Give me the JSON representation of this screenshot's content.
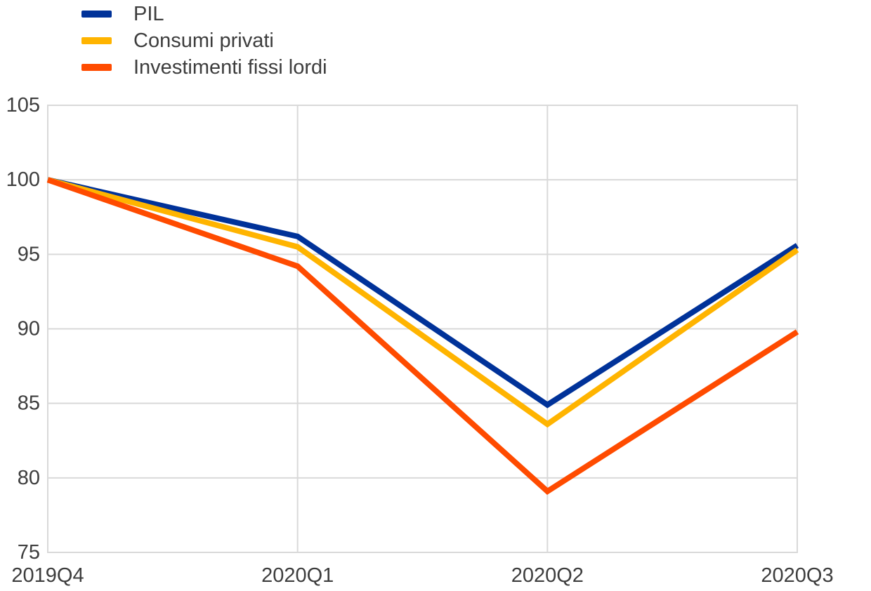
{
  "chart_data": {
    "type": "line",
    "categories": [
      "2019Q4",
      "2020Q1",
      "2020Q2",
      "2020Q3"
    ],
    "series": [
      {
        "name": "PIL",
        "color": "#003299",
        "values": [
          100,
          96.2,
          84.9,
          95.6
        ]
      },
      {
        "name": "Consumi privati",
        "color": "#FFB400",
        "values": [
          100,
          95.5,
          83.6,
          95.3
        ]
      },
      {
        "name": "Investimenti fissi lordi",
        "color": "#FF4B00",
        "values": [
          100,
          94.2,
          79.1,
          89.8
        ]
      }
    ],
    "title": "",
    "xlabel": "",
    "ylabel": "",
    "ylim": [
      75,
      105
    ],
    "yticks": [
      75,
      80,
      85,
      90,
      95,
      100,
      105
    ],
    "grid": true,
    "legend_position": "top-left",
    "line_width": 8,
    "colors": {
      "grid": "#d9d9d9",
      "text": "#3d3d3d",
      "background": "#ffffff"
    }
  }
}
